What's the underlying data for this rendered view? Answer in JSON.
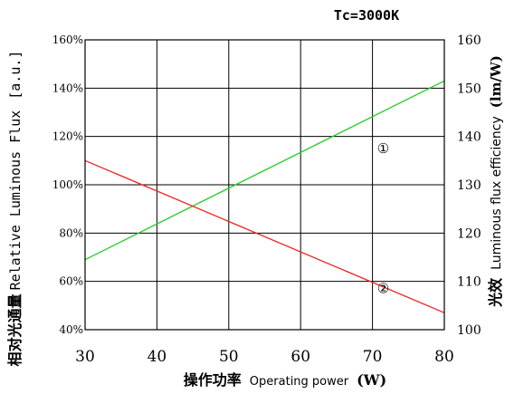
{
  "chart_data": {
    "type": "line",
    "condition": "Tc=3000K",
    "xlabel": {
      "cn": "操作功率",
      "en": "Operating power",
      "unit": "(W)"
    },
    "ylabel_left": {
      "cn": "相对光通量",
      "en": "Relative Luminous Flux",
      "unit": "[a.u.]"
    },
    "ylabel_right": {
      "cn": "光效",
      "en": "Luminous flux efficiency",
      "unit": "(lm/W)"
    },
    "xlim": [
      30,
      80
    ],
    "x_ticks": [
      "30",
      "40",
      "50",
      "60",
      "70",
      "80"
    ],
    "ylim_left": [
      40,
      160
    ],
    "y_left_ticks": [
      "40%",
      "60%",
      "80%",
      "100%",
      "120%",
      "140%",
      "160%"
    ],
    "ylim_right": [
      100,
      160
    ],
    "y_right_ticks": [
      "100",
      "110",
      "120",
      "130",
      "140",
      "150",
      "160"
    ],
    "grid": true,
    "series": [
      {
        "name": "①",
        "axis": "left",
        "color": "#22cc22",
        "x": [
          30,
          80
        ],
        "y": [
          69,
          143
        ]
      },
      {
        "name": "②",
        "axis": "right",
        "color": "#ee2222",
        "x": [
          30,
          80
        ],
        "y": [
          135,
          103.5
        ]
      }
    ],
    "series_labels": [
      {
        "text": "①",
        "at": [
          71.5,
          137.5
        ],
        "axis": "right"
      },
      {
        "text": "②",
        "at": [
          71.5,
          108.5
        ],
        "axis": "right"
      }
    ]
  }
}
